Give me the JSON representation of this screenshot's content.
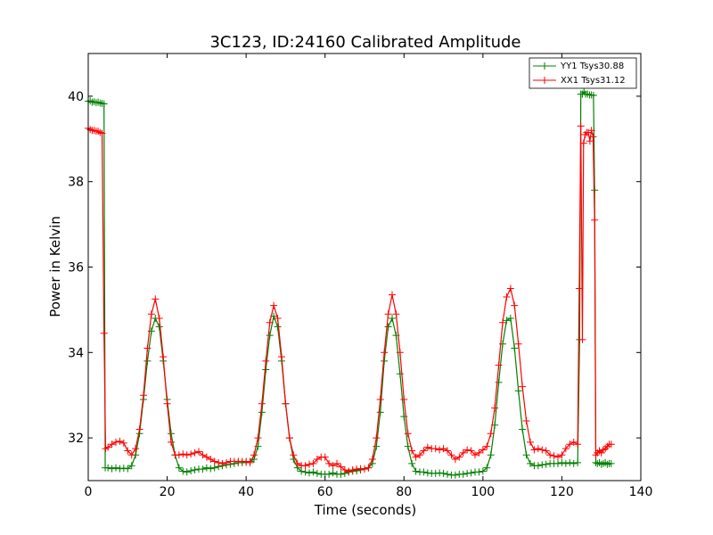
{
  "colors": {
    "yy1": "#008000",
    "xx1": "#ff0000",
    "frame": "#000000",
    "background": "#ffffff"
  },
  "chart_data": {
    "type": "line",
    "title": "3C123, ID:24160 Calibrated Amplitude",
    "xlabel": "Time (seconds)",
    "ylabel": "Power in Kelvin",
    "xlim": [
      0,
      140
    ],
    "ylim": [
      31,
      41
    ],
    "xticks": [
      0,
      20,
      40,
      60,
      80,
      100,
      120,
      140
    ],
    "yticks": [
      32,
      34,
      36,
      38,
      40
    ],
    "xtick_labels": [
      "0",
      "20",
      "40",
      "60",
      "80",
      "100",
      "120",
      "140"
    ],
    "ytick_labels": [
      "32",
      "34",
      "36",
      "38",
      "40"
    ],
    "grid": false,
    "legend_position": "top-right",
    "marker": "+",
    "series": [
      {
        "name": "YY1 Tsys30.88",
        "color": "#008000",
        "points": [
          [
            0,
            39.88
          ],
          [
            0.5,
            39.89
          ],
          [
            1,
            39.86
          ],
          [
            1.5,
            39.87
          ],
          [
            2,
            39.85
          ],
          [
            2.5,
            39.86
          ],
          [
            3,
            39.84
          ],
          [
            3.5,
            39.83
          ],
          [
            4,
            39.82
          ],
          [
            4.3,
            31.3
          ],
          [
            5,
            31.3
          ],
          [
            6,
            31.28
          ],
          [
            7,
            31.3
          ],
          [
            8,
            31.28
          ],
          [
            9,
            31.29
          ],
          [
            10,
            31.28
          ],
          [
            11,
            31.35
          ],
          [
            12,
            31.6
          ],
          [
            13,
            32.1
          ],
          [
            14,
            32.9
          ],
          [
            15,
            33.8
          ],
          [
            16,
            34.5
          ],
          [
            17,
            34.8
          ],
          [
            18,
            34.6
          ],
          [
            19,
            33.8
          ],
          [
            20,
            32.9
          ],
          [
            21,
            32.1
          ],
          [
            22,
            31.6
          ],
          [
            23,
            31.3
          ],
          [
            24,
            31.22
          ],
          [
            25,
            31.2
          ],
          [
            26,
            31.23
          ],
          [
            27,
            31.25
          ],
          [
            28,
            31.27
          ],
          [
            29,
            31.27
          ],
          [
            30,
            31.3
          ],
          [
            31,
            31.28
          ],
          [
            32,
            31.3
          ],
          [
            33,
            31.33
          ],
          [
            34,
            31.35
          ],
          [
            35,
            31.37
          ],
          [
            36,
            31.38
          ],
          [
            37,
            31.4
          ],
          [
            38,
            31.42
          ],
          [
            39,
            31.42
          ],
          [
            40,
            31.43
          ],
          [
            41,
            31.45
          ],
          [
            42,
            31.5
          ],
          [
            43,
            31.8
          ],
          [
            44,
            32.6
          ],
          [
            45,
            33.6
          ],
          [
            46,
            34.4
          ],
          [
            47,
            34.85
          ],
          [
            48,
            34.6
          ],
          [
            49,
            33.8
          ],
          [
            50,
            32.8
          ],
          [
            51,
            32
          ],
          [
            52,
            31.5
          ],
          [
            53,
            31.3
          ],
          [
            54,
            31.22
          ],
          [
            55,
            31.2
          ],
          [
            56,
            31.18
          ],
          [
            57,
            31.2
          ],
          [
            58,
            31.17
          ],
          [
            59,
            31.15
          ],
          [
            60,
            31.15
          ],
          [
            61,
            31.15
          ],
          [
            62,
            31.18
          ],
          [
            63,
            31.15
          ],
          [
            64,
            31.15
          ],
          [
            65,
            31.17
          ],
          [
            66,
            31.2
          ],
          [
            67,
            31.22
          ],
          [
            68,
            31.23
          ],
          [
            69,
            31.25
          ],
          [
            70,
            31.28
          ],
          [
            71,
            31.3
          ],
          [
            72,
            31.4
          ],
          [
            73,
            31.8
          ],
          [
            74,
            32.6
          ],
          [
            75,
            33.8
          ],
          [
            76,
            34.6
          ],
          [
            77,
            34.8
          ],
          [
            78,
            34.4
          ],
          [
            79,
            33.5
          ],
          [
            80,
            32.5
          ],
          [
            81,
            31.8
          ],
          [
            82,
            31.4
          ],
          [
            83,
            31.22
          ],
          [
            84,
            31.2
          ],
          [
            85,
            31.2
          ],
          [
            86,
            31.18
          ],
          [
            87,
            31.17
          ],
          [
            88,
            31.17
          ],
          [
            89,
            31.18
          ],
          [
            90,
            31.17
          ],
          [
            91,
            31.15
          ],
          [
            92,
            31.13
          ],
          [
            93,
            31.13
          ],
          [
            94,
            31.15
          ],
          [
            95,
            31.15
          ],
          [
            96,
            31.17
          ],
          [
            97,
            31.18
          ],
          [
            98,
            31.2
          ],
          [
            99,
            31.2
          ],
          [
            100,
            31.22
          ],
          [
            101,
            31.3
          ],
          [
            102,
            31.6
          ],
          [
            103,
            32.3
          ],
          [
            104,
            33.3
          ],
          [
            105,
            34.2
          ],
          [
            106,
            34.75
          ],
          [
            107,
            34.8
          ],
          [
            108,
            34.1
          ],
          [
            109,
            33.1
          ],
          [
            110,
            32.2
          ],
          [
            111,
            31.6
          ],
          [
            112,
            31.4
          ],
          [
            113,
            31.35
          ],
          [
            114,
            31.35
          ],
          [
            115,
            31.37
          ],
          [
            116,
            31.38
          ],
          [
            117,
            31.4
          ],
          [
            118,
            31.4
          ],
          [
            119,
            31.4
          ],
          [
            120,
            31.42
          ],
          [
            121,
            31.4
          ],
          [
            122,
            31.42
          ],
          [
            123,
            31.4
          ],
          [
            124,
            31.42
          ],
          [
            124.5,
            34.3
          ],
          [
            124.8,
            40.05
          ],
          [
            125.2,
            40.05
          ],
          [
            125.6,
            40.1
          ],
          [
            126,
            40.05
          ],
          [
            126.5,
            40.05
          ],
          [
            127,
            40.03
          ],
          [
            127.5,
            40.03
          ],
          [
            128,
            40.02
          ],
          [
            128.3,
            37.8
          ],
          [
            128.6,
            31.42
          ],
          [
            129,
            31.4
          ],
          [
            129.5,
            31.42
          ],
          [
            130,
            31.38
          ],
          [
            130.5,
            31.4
          ],
          [
            131,
            31.42
          ],
          [
            131.5,
            31.38
          ],
          [
            132,
            31.4
          ],
          [
            132.5,
            31.4
          ]
        ]
      },
      {
        "name": "XX1 Tsys31.12",
        "color": "#ff0000",
        "points": [
          [
            0,
            39.25
          ],
          [
            0.5,
            39.22
          ],
          [
            1,
            39.2
          ],
          [
            1.5,
            39.2
          ],
          [
            2,
            39.18
          ],
          [
            2.5,
            39.18
          ],
          [
            3,
            39.15
          ],
          [
            3.5,
            39.13
          ],
          [
            4,
            34.45
          ],
          [
            4.4,
            31.75
          ],
          [
            5,
            31.78
          ],
          [
            6,
            31.85
          ],
          [
            7,
            31.9
          ],
          [
            8,
            31.92
          ],
          [
            9,
            31.88
          ],
          [
            10,
            31.7
          ],
          [
            11,
            31.6
          ],
          [
            12,
            31.75
          ],
          [
            13,
            32.2
          ],
          [
            14,
            33
          ],
          [
            15,
            34.1
          ],
          [
            16,
            34.9
          ],
          [
            17,
            35.25
          ],
          [
            18,
            34.8
          ],
          [
            19,
            33.9
          ],
          [
            20,
            32.8
          ],
          [
            21,
            31.9
          ],
          [
            22,
            31.6
          ],
          [
            23,
            31.6
          ],
          [
            24,
            31.62
          ],
          [
            25,
            31.6
          ],
          [
            26,
            31.62
          ],
          [
            27,
            31.65
          ],
          [
            28,
            31.68
          ],
          [
            29,
            31.6
          ],
          [
            30,
            31.55
          ],
          [
            31,
            31.5
          ],
          [
            32,
            31.45
          ],
          [
            33,
            31.42
          ],
          [
            34,
            31.4
          ],
          [
            35,
            31.42
          ],
          [
            36,
            31.45
          ],
          [
            37,
            31.45
          ],
          [
            38,
            31.45
          ],
          [
            39,
            31.45
          ],
          [
            40,
            31.45
          ],
          [
            41,
            31.42
          ],
          [
            42,
            31.6
          ],
          [
            43,
            32
          ],
          [
            44,
            32.8
          ],
          [
            45,
            33.8
          ],
          [
            46,
            34.7
          ],
          [
            47,
            35.1
          ],
          [
            48,
            34.8
          ],
          [
            49,
            33.9
          ],
          [
            50,
            32.8
          ],
          [
            51,
            32
          ],
          [
            52,
            31.6
          ],
          [
            53,
            31.4
          ],
          [
            54,
            31.35
          ],
          [
            55,
            31.35
          ],
          [
            56,
            31.38
          ],
          [
            57,
            31.4
          ],
          [
            58,
            31.5
          ],
          [
            59,
            31.55
          ],
          [
            60,
            31.55
          ],
          [
            61,
            31.4
          ],
          [
            62,
            31.35
          ],
          [
            63,
            31.4
          ],
          [
            64,
            31.32
          ],
          [
            65,
            31.25
          ],
          [
            66,
            31.22
          ],
          [
            67,
            31.25
          ],
          [
            68,
            31.27
          ],
          [
            69,
            31.28
          ],
          [
            70,
            31.27
          ],
          [
            71,
            31.3
          ],
          [
            72,
            31.5
          ],
          [
            73,
            32
          ],
          [
            74,
            32.9
          ],
          [
            75,
            34
          ],
          [
            76,
            34.9
          ],
          [
            77,
            35.35
          ],
          [
            78,
            34.9
          ],
          [
            79,
            34
          ],
          [
            80,
            32.9
          ],
          [
            81,
            32.1
          ],
          [
            82,
            31.7
          ],
          [
            83,
            31.55
          ],
          [
            84,
            31.6
          ],
          [
            85,
            31.7
          ],
          [
            86,
            31.78
          ],
          [
            87,
            31.75
          ],
          [
            88,
            31.75
          ],
          [
            89,
            31.72
          ],
          [
            90,
            31.75
          ],
          [
            91,
            31.7
          ],
          [
            92,
            31.6
          ],
          [
            93,
            31.5
          ],
          [
            94,
            31.55
          ],
          [
            95,
            31.65
          ],
          [
            96,
            31.72
          ],
          [
            97,
            31.7
          ],
          [
            98,
            31.6
          ],
          [
            99,
            31.65
          ],
          [
            100,
            31.72
          ],
          [
            101,
            31.8
          ],
          [
            102,
            32.1
          ],
          [
            103,
            32.7
          ],
          [
            104,
            33.7
          ],
          [
            105,
            34.7
          ],
          [
            106,
            35.3
          ],
          [
            107,
            35.5
          ],
          [
            108,
            35.1
          ],
          [
            109,
            34.2
          ],
          [
            110,
            33.2
          ],
          [
            111,
            32.4
          ],
          [
            112,
            31.9
          ],
          [
            113,
            31.72
          ],
          [
            114,
            31.75
          ],
          [
            115,
            31.72
          ],
          [
            116,
            31.7
          ],
          [
            117,
            31.6
          ],
          [
            118,
            31.58
          ],
          [
            119,
            31.55
          ],
          [
            120,
            31.6
          ],
          [
            121,
            31.75
          ],
          [
            122,
            31.85
          ],
          [
            123,
            31.9
          ],
          [
            124,
            31.85
          ],
          [
            124.4,
            35.5
          ],
          [
            124.8,
            39.3
          ],
          [
            125.2,
            34.3
          ],
          [
            125.5,
            38.9
          ],
          [
            125.9,
            39.1
          ],
          [
            126.3,
            39.15
          ],
          [
            126.7,
            39.15
          ],
          [
            127.1,
            38.95
          ],
          [
            127.5,
            39.2
          ],
          [
            127.9,
            39.05
          ],
          [
            128.3,
            37.1
          ],
          [
            128.6,
            31.6
          ],
          [
            129,
            31.65
          ],
          [
            129.5,
            31.7
          ],
          [
            130,
            31.65
          ],
          [
            130.5,
            31.72
          ],
          [
            131,
            31.75
          ],
          [
            131.5,
            31.8
          ],
          [
            132,
            31.85
          ],
          [
            132.5,
            31.85
          ]
        ]
      }
    ]
  }
}
